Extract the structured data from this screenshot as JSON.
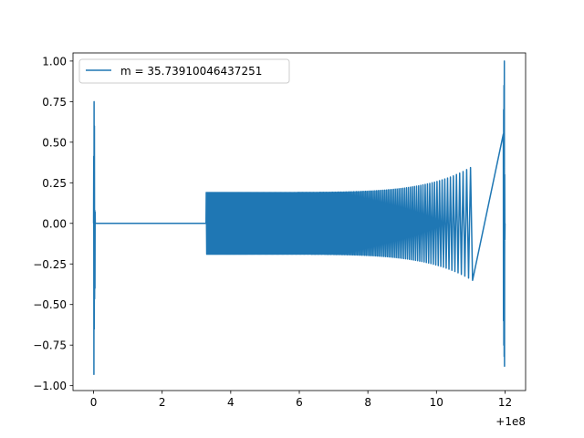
{
  "chart_data": {
    "type": "line",
    "title": "",
    "xlabel": "",
    "ylabel": "",
    "x_offset_label": "+1e8",
    "xlim": [
      -0.6,
      12.6
    ],
    "ylim": [
      -1.03,
      1.05
    ],
    "x_ticks": [
      {
        "value": 0,
        "label": "0"
      },
      {
        "value": 2,
        "label": "2"
      },
      {
        "value": 4,
        "label": "4"
      },
      {
        "value": 6,
        "label": "6"
      },
      {
        "value": 8,
        "label": "8"
      },
      {
        "value": 10,
        "label": "10"
      },
      {
        "value": 12,
        "label": "12"
      }
    ],
    "y_ticks": [
      {
        "value": -1.0,
        "label": "−1.00"
      },
      {
        "value": -0.75,
        "label": "−0.75"
      },
      {
        "value": -0.5,
        "label": "−0.50"
      },
      {
        "value": -0.25,
        "label": "−0.25"
      },
      {
        "value": 0.0,
        "label": "0.00"
      },
      {
        "value": 0.25,
        "label": "0.25"
      },
      {
        "value": 0.5,
        "label": "0.50"
      },
      {
        "value": 0.75,
        "label": "0.75"
      },
      {
        "value": 1.0,
        "label": "1.00"
      }
    ],
    "grid": false,
    "legend": {
      "position": "top-left"
    },
    "series": [
      {
        "name": "m = 35.73910046437251",
        "color": "#1f77b4",
        "segments": [
          {
            "x_start": 0.0,
            "x_end": 0.05,
            "oscillating": true,
            "peak_max": 0.75,
            "peak_min": -0.93
          },
          {
            "x_start": 0.05,
            "x_end": 3.28,
            "oscillating": false,
            "value": 0.0
          },
          {
            "x_start": 3.28,
            "x_end": 11.95,
            "oscillating": true,
            "envelope_start": 0.19,
            "envelope_end": 0.5,
            "cycles": 190
          },
          {
            "x_start": 11.95,
            "x_end": 12.0,
            "oscillating": true,
            "peak_max": 1.0,
            "peak_min": -0.88
          }
        ]
      }
    ]
  }
}
